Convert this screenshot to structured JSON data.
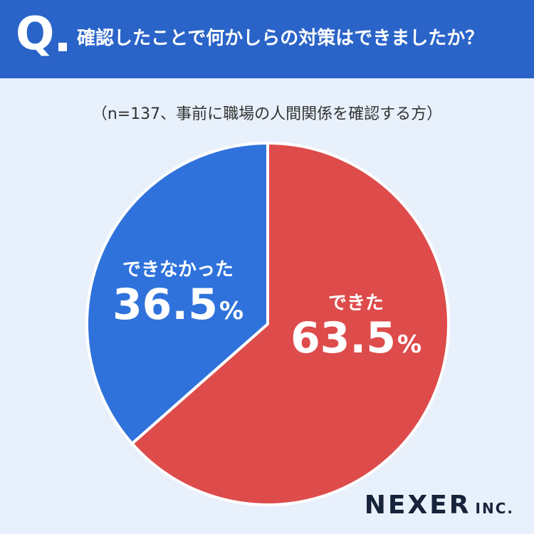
{
  "header": {
    "q_mark": "Q",
    "question": "確認したことで何かしらの対策はできましたか？"
  },
  "sample_note": "（n=137、事前に職場の人間関係を確認する方）",
  "chart_data": {
    "type": "pie",
    "title": "",
    "categories": [
      "できた",
      "できなかった"
    ],
    "values": [
      63.5,
      36.5
    ],
    "unit": "%",
    "start_angle_deg": 0,
    "direction": "clockwise",
    "colors": [
      "#de4b4b",
      "#2f72dc"
    ]
  },
  "labels": {
    "red": {
      "category": "できた",
      "value": "63.5",
      "unit": "%"
    },
    "blue": {
      "category": "できなかった",
      "value": "36.5",
      "unit": "%"
    }
  },
  "logo": {
    "main": "NEXER",
    "sub": "INC."
  },
  "colors": {
    "header_bg": "#2a64c8",
    "page_bg": "#e8f0fb",
    "red": "#de4b4b",
    "blue": "#2f72dc"
  }
}
